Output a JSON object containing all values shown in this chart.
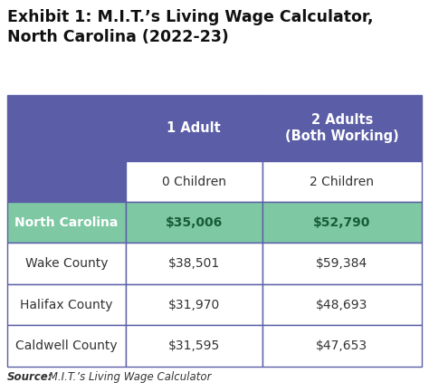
{
  "title": "Exhibit 1: M.I.T.’s Living Wage Calculator,\nNorth Carolina (2022-23)",
  "col_headers_row1": [
    "1 Adult",
    "2 Adults\n(Both Working)"
  ],
  "col_headers_row2": [
    "0 Children",
    "2 Children"
  ],
  "rows": [
    {
      "label": "North Carolina",
      "values": [
        "$35,006",
        "$52,790"
      ],
      "highlight": true
    },
    {
      "label": "Wake County",
      "values": [
        "$38,501",
        "$59,384"
      ],
      "highlight": false
    },
    {
      "label": "Halifax County",
      "values": [
        "$31,970",
        "$48,693"
      ],
      "highlight": false
    },
    {
      "label": "Caldwell County",
      "values": [
        "$31,595",
        "$47,653"
      ],
      "highlight": false
    }
  ],
  "header_bg": "#5B5EA6",
  "header_text": "#FFFFFF",
  "highlight_bg": "#7EC8A4",
  "highlight_text": "#FFFFFF",
  "highlight_value_text": "#1A5C3A",
  "cell_bg": "#FFFFFF",
  "cell_text": "#333333",
  "border_color": "#5B5EA6",
  "title_fontsize": 12.5,
  "header_fontsize": 10.5,
  "cell_fontsize": 10,
  "source_fontsize": 8.5,
  "fig_width": 4.74,
  "fig_height": 4.33,
  "dpi": 100
}
